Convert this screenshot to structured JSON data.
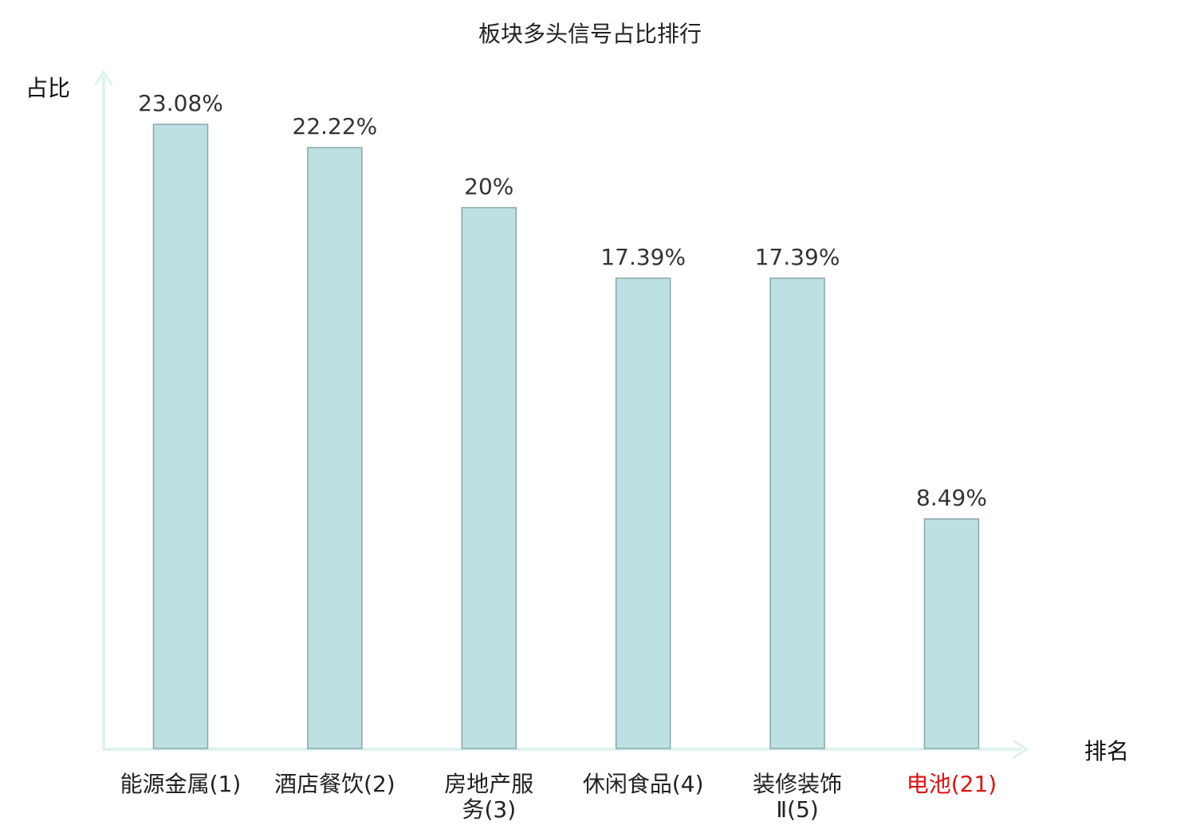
{
  "chart_data": {
    "type": "bar",
    "title": "板块多头信号占比排行",
    "ylabel": "占比",
    "xlabel": "排名",
    "categories": [
      "能源金属(1)",
      "酒店餐饮(2)",
      "房地产服务(3)",
      "休闲食品(4)",
      "装修装饰Ⅱ(5)",
      "电池(21)"
    ],
    "category_lines": [
      [
        "能源金属(1)"
      ],
      [
        "酒店餐饮(2)"
      ],
      [
        "房地产服",
        "务(3)"
      ],
      [
        "休闲食品(4)"
      ],
      [
        "装修装饰",
        "Ⅱ(5)"
      ],
      [
        "电池(21)"
      ]
    ],
    "values": [
      23.08,
      22.22,
      20,
      17.39,
      17.39,
      8.49
    ],
    "value_labels": [
      "23.08%",
      "22.22%",
      "20%",
      "17.39%",
      "17.39%",
      "8.49%"
    ],
    "highlight_index": 5,
    "ylim": [
      0,
      23.08
    ],
    "grid": false,
    "legend": "none",
    "colors": {
      "bar_fill": "#bde0e3",
      "bar_stroke": "#8aa6a8",
      "axis": "#dff2ef",
      "label": "#222222",
      "highlight_label": "#e01010"
    }
  }
}
